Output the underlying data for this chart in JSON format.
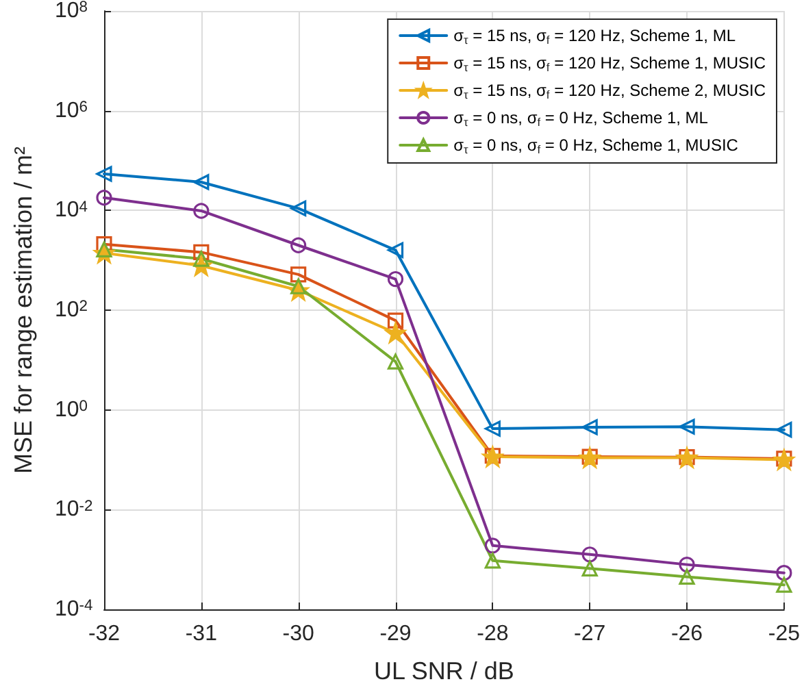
{
  "chart_data": {
    "type": "line",
    "xlabel": "UL SNR / dB",
    "ylabel": "MSE for range estimation / m²",
    "x": [
      -32,
      -31,
      -30,
      -29,
      -28,
      -27,
      -26,
      -25
    ],
    "xlim": [
      -32,
      -25
    ],
    "xticks": [
      -32,
      -31,
      -30,
      -29,
      -28,
      -27,
      -26,
      -25
    ],
    "log": "y",
    "ylim": [
      0.0001,
      100000000
    ],
    "yticks": [
      {
        "value": 0.0001,
        "label": "10$^{-4}$"
      },
      {
        "value": 0.01,
        "label": "10$^{-2}$"
      },
      {
        "value": 1,
        "label": "10$^{0}$"
      },
      {
        "value": 100,
        "label": "10$^{2}$"
      },
      {
        "value": 10000,
        "label": "10$^{4}$"
      },
      {
        "value": 1000000,
        "label": "10$^{6}$"
      },
      {
        "value": 100000000,
        "label": "10$^{8}$"
      }
    ],
    "grid": true,
    "legend": "top right",
    "line_style": "solid",
    "series": [
      {
        "name": "σ$_{τ}$ = 15 ns, σ$_{f}$ = 120 Hz, Scheme 1, ML",
        "color": "#0072bd",
        "marker": "triangle-left",
        "values": [
          54000,
          37000,
          11000,
          1600,
          0.42,
          0.45,
          0.46,
          0.4
        ]
      },
      {
        "name": "σ$_{τ}$ = 15 ns, σ$_{f}$ = 120 Hz, Scheme 1, MUSIC",
        "color": "#d95319",
        "marker": "square",
        "values": [
          2100,
          1450,
          520,
          62,
          0.12,
          0.115,
          0.113,
          0.105
        ]
      },
      {
        "name": "σ$_{τ}$ = 15 ns, σ$_{f}$ = 120 Hz, Scheme 2, MUSIC",
        "color": "#edb120",
        "marker": "star",
        "values": [
          1400,
          780,
          250,
          35,
          0.115,
          0.11,
          0.11,
          0.1
        ]
      },
      {
        "name": "σ$_{τ}$ = 0 ns, σ$_{f}$ = 0 Hz, Scheme 1, ML",
        "color": "#7e2f8e",
        "marker": "circle",
        "values": [
          18000,
          9800,
          2000,
          420,
          0.0019,
          0.00126,
          0.00079,
          0.00054
        ]
      },
      {
        "name": "σ$_{τ}$ = 0 ns, σ$_{f}$ = 0 Hz, Scheme 1, MUSIC",
        "color": "#77ac30",
        "marker": "triangle",
        "values": [
          1650,
          1070,
          300,
          9.3,
          0.00095,
          0.00066,
          0.00045,
          0.00031
        ]
      }
    ]
  }
}
